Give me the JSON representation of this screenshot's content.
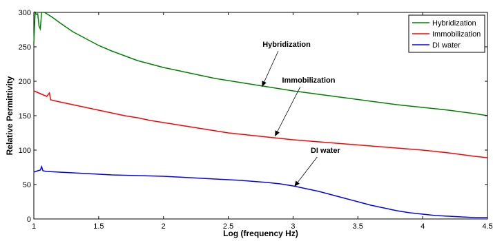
{
  "chart_data": {
    "type": "line",
    "xlabel": "Log (frequency Hz)",
    "ylabel": "Relative Permittivity",
    "xlim": [
      1,
      4.5
    ],
    "ylim": [
      0,
      300
    ],
    "xticks": [
      1,
      1.5,
      2,
      2.5,
      3,
      3.5,
      4,
      4.5
    ],
    "xtick_labels": [
      "1",
      "1.5",
      "2",
      "2.5",
      "3",
      "3.5",
      "4",
      "4.5"
    ],
    "yticks": [
      0,
      50,
      100,
      150,
      200,
      250,
      300
    ],
    "ytick_labels": [
      "0",
      "50",
      "100",
      "150",
      "200",
      "250",
      "300"
    ],
    "grid": false,
    "legend_position": "top-right",
    "series": [
      {
        "name": "Hybridization",
        "color": "#008000",
        "x": [
          1.0,
          1.01,
          1.02,
          1.03,
          1.04,
          1.05,
          1.06,
          1.08,
          1.1,
          1.15,
          1.2,
          1.3,
          1.4,
          1.5,
          1.6,
          1.7,
          1.8,
          1.9,
          2.0,
          2.1,
          2.2,
          2.3,
          2.4,
          2.5,
          2.6,
          2.7,
          2.8,
          3.0,
          3.2,
          3.4,
          3.6,
          3.8,
          4.0,
          4.2,
          4.4,
          4.5
        ],
        "y": [
          255,
          300,
          297,
          298,
          280,
          276,
          300,
          300,
          298,
          292,
          285,
          272,
          262,
          252,
          244,
          237,
          230,
          225,
          220,
          216,
          212,
          208,
          204,
          201,
          198,
          195,
          192,
          186,
          181,
          176,
          171,
          166,
          162,
          158,
          153,
          150
        ]
      },
      {
        "name": "Immobilization",
        "color": "#ff0000",
        "x": [
          1.0,
          1.05,
          1.1,
          1.12,
          1.13,
          1.2,
          1.3,
          1.4,
          1.5,
          1.6,
          1.7,
          1.8,
          1.9,
          2.0,
          2.1,
          2.2,
          2.3,
          2.4,
          2.5,
          2.6,
          2.7,
          2.8,
          3.0,
          3.2,
          3.4,
          3.6,
          3.8,
          4.0,
          4.2,
          4.4,
          4.5
        ],
        "y": [
          186,
          182,
          178,
          183,
          173,
          170,
          166,
          162,
          158,
          154,
          150,
          147,
          143,
          140,
          137,
          134,
          131,
          128,
          125,
          123,
          121,
          119,
          115,
          112,
          109,
          106,
          103,
          100,
          96,
          91,
          89
        ]
      },
      {
        "name": "DI water",
        "color": "#0000ff",
        "x": [
          1.0,
          1.03,
          1.05,
          1.06,
          1.07,
          1.1,
          1.2,
          1.4,
          1.6,
          1.8,
          2.0,
          2.2,
          2.4,
          2.6,
          2.8,
          2.9,
          3.0,
          3.1,
          3.2,
          3.3,
          3.4,
          3.5,
          3.6,
          3.7,
          3.8,
          3.9,
          4.0,
          4.1,
          4.2,
          4.3,
          4.4,
          4.5
        ],
        "y": [
          68,
          70,
          71,
          76,
          70,
          69,
          68,
          66,
          64,
          63,
          62,
          60,
          58,
          56,
          53,
          51,
          48,
          44,
          40,
          35,
          30,
          25,
          20,
          16,
          12,
          9,
          7,
          5,
          4,
          3,
          2,
          2
        ]
      }
    ],
    "annotations": [
      {
        "text": "Hybridization",
        "text_x": 2.95,
        "text_y": 250,
        "arrow_x": 2.76,
        "arrow_y": 192
      },
      {
        "text": "Immobilization",
        "text_x": 3.12,
        "text_y": 198,
        "arrow_x": 2.86,
        "arrow_y": 120
      },
      {
        "text": "DI water",
        "text_x": 3.25,
        "text_y": 96,
        "arrow_x": 3.01,
        "arrow_y": 47
      }
    ]
  }
}
